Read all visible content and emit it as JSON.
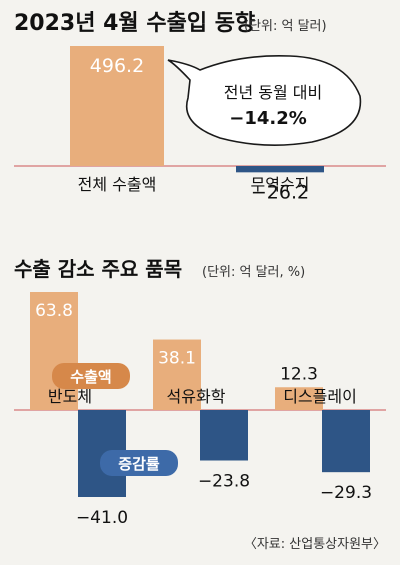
{
  "top": {
    "title": "2023년 4월 수출입 동향",
    "unit": "(단위: 억 달러)",
    "callout_line1": "전년 동월 대비",
    "callout_line2": "−14.2%"
  },
  "bottom": {
    "title": "수출 감소 주요 품목",
    "unit": "(단위: 억 달러, %)",
    "export_tag": "수출액",
    "change_tag": "증감률"
  },
  "source": "〈자료: 산업통상자원부〉",
  "colors": {
    "export": "#e8ae7c",
    "change": "#2e5586",
    "baseline": "#d98a8a",
    "tag_export_bg": "#d6884a",
    "tag_change_bg": "#3d6aa8"
  },
  "chart_data": [
    {
      "type": "bar",
      "categories": [
        "전체 수출액",
        "무역수지"
      ],
      "values": [
        496.2,
        -26.2
      ],
      "value_labels": [
        "496.2",
        "−26.2"
      ]
    },
    {
      "type": "bar",
      "categories": [
        "반도체",
        "석유화학",
        "디스플레이"
      ],
      "series": [
        {
          "name": "수출액",
          "values": [
            63.8,
            38.1,
            12.3
          ],
          "labels": [
            "63.8",
            "38.1",
            "12.3"
          ]
        },
        {
          "name": "증감률",
          "values": [
            -41.0,
            -23.8,
            -29.3
          ],
          "labels": [
            "−41.0",
            "−23.8",
            "−29.3"
          ]
        }
      ]
    }
  ]
}
